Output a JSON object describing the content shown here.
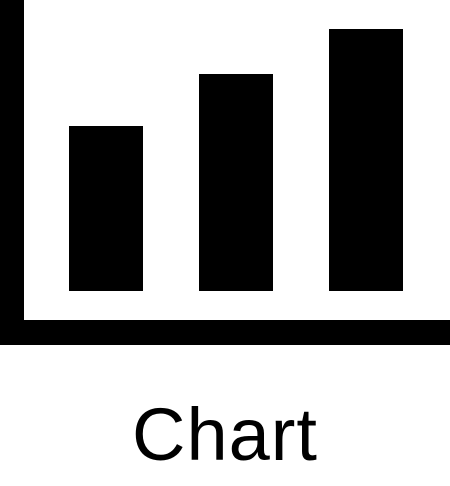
{
  "icon": {
    "name": "bar-chart-icon",
    "color": "#000000",
    "bar_levels": [
      0.63,
      0.83,
      1.0
    ]
  },
  "label": "Chart",
  "background": "#ffffff"
}
